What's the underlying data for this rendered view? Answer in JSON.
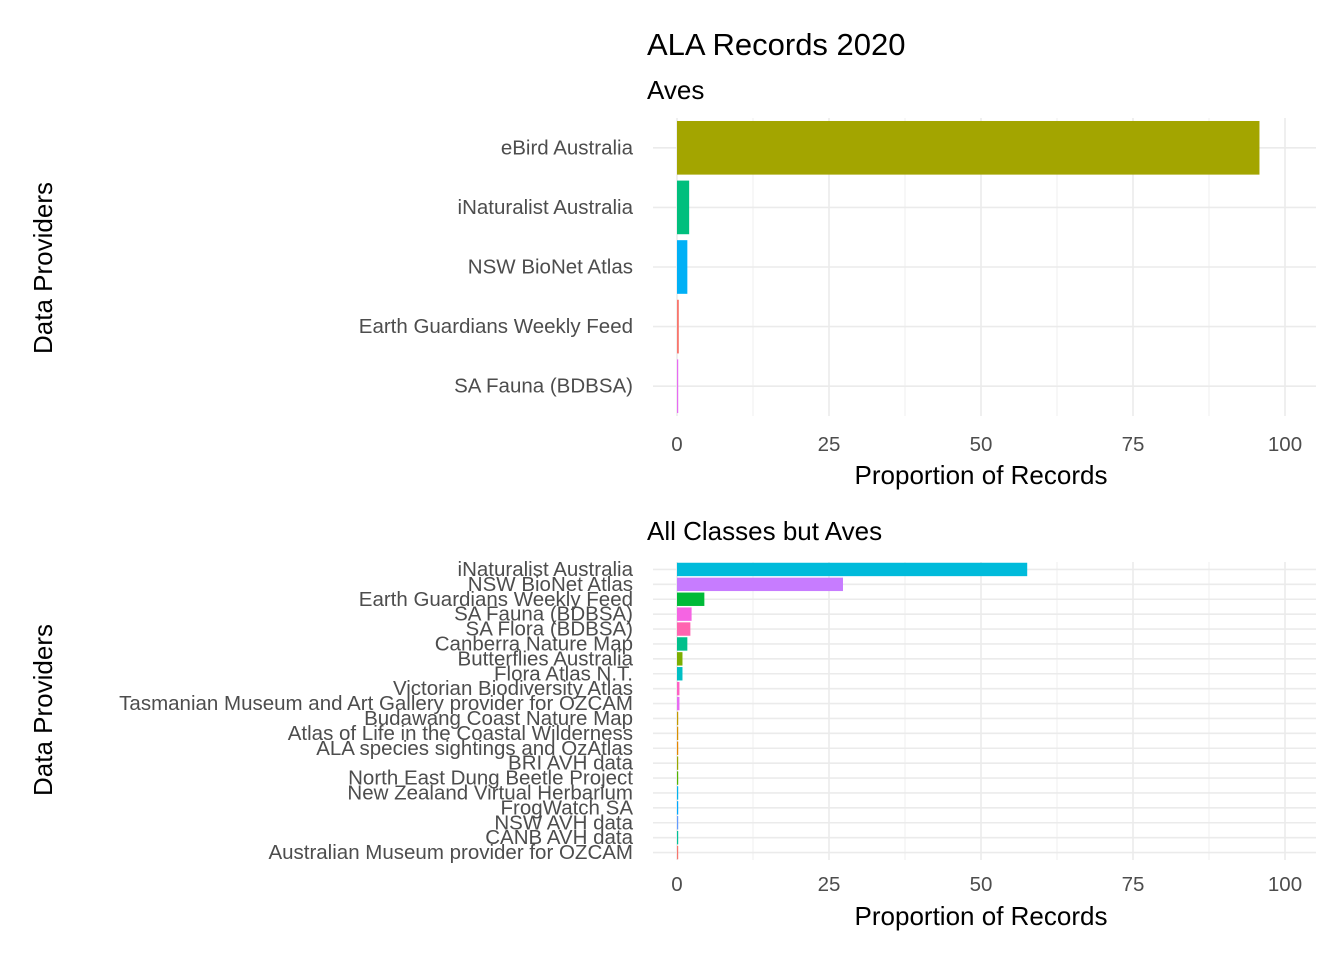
{
  "title": "ALA Records 2020",
  "chart_data": [
    {
      "type": "bar",
      "orientation": "horizontal",
      "subtitle": "Aves",
      "xlabel": "Proportion of Records",
      "ylabel": "Data Providers",
      "xlim": [
        0,
        100
      ],
      "xticks": [
        "0",
        "25",
        "50",
        "75",
        "100"
      ],
      "grid": true,
      "categories": [
        "eBird Australia",
        "iNaturalist Australia",
        "NSW BioNet Atlas",
        "Earth Guardians Weekly Feed",
        "SA Fauna (BDBSA)"
      ],
      "values": [
        95.8,
        2.0,
        1.7,
        0.3,
        0.2
      ],
      "colors": [
        "#A3A500",
        "#00BF7D",
        "#00B0F6",
        "#F8766D",
        "#E76BF3"
      ]
    },
    {
      "type": "bar",
      "orientation": "horizontal",
      "subtitle": "All Classes but Aves",
      "xlabel": "Proportion of Records",
      "ylabel": "Data Providers",
      "xlim": [
        0,
        100
      ],
      "xticks": [
        "0",
        "25",
        "50",
        "75",
        "100"
      ],
      "grid": true,
      "categories": [
        "iNaturalist Australia",
        "NSW BioNet Atlas",
        "Earth Guardians Weekly Feed",
        "SA Fauna (BDBSA)",
        "SA Flora (BDBSA)",
        "Canberra Nature Map",
        "Butterflies Australia",
        "Flora Atlas N.T.",
        "Victorian Biodiversity Atlas",
        "Tasmanian Museum and Art Gallery provider for OZCAM",
        "Budawang Coast Nature Map",
        "Atlas of Life in the Coastal Wilderness",
        "ALA species sightings and OzAtlas",
        "BRI AVH data",
        "North East Dung Beetle Project",
        "New Zealand Virtual Herbarium",
        "FrogWatch SA",
        "NSW AVH data",
        "CANB AVH data",
        "Australian Museum provider for OZCAM"
      ],
      "values": [
        57.6,
        27.3,
        4.5,
        2.4,
        2.2,
        1.7,
        0.9,
        0.9,
        0.4,
        0.4,
        0.2,
        0.2,
        0.2,
        0.15,
        0.15,
        0.12,
        0.12,
        0.1,
        0.1,
        0.1
      ],
      "colors": [
        "#00BBDB",
        "#C77CFF",
        "#00BA38",
        "#F564E3",
        "#FF64B0",
        "#00C08B",
        "#7CAE00",
        "#00BFC4",
        "#FF61C3",
        "#E76BF3",
        "#C49A00",
        "#D89000",
        "#E58700",
        "#99A800",
        "#53B400",
        "#00B4F0",
        "#00A9FF",
        "#619CFF",
        "#00C19A",
        "#F8766D"
      ]
    }
  ]
}
